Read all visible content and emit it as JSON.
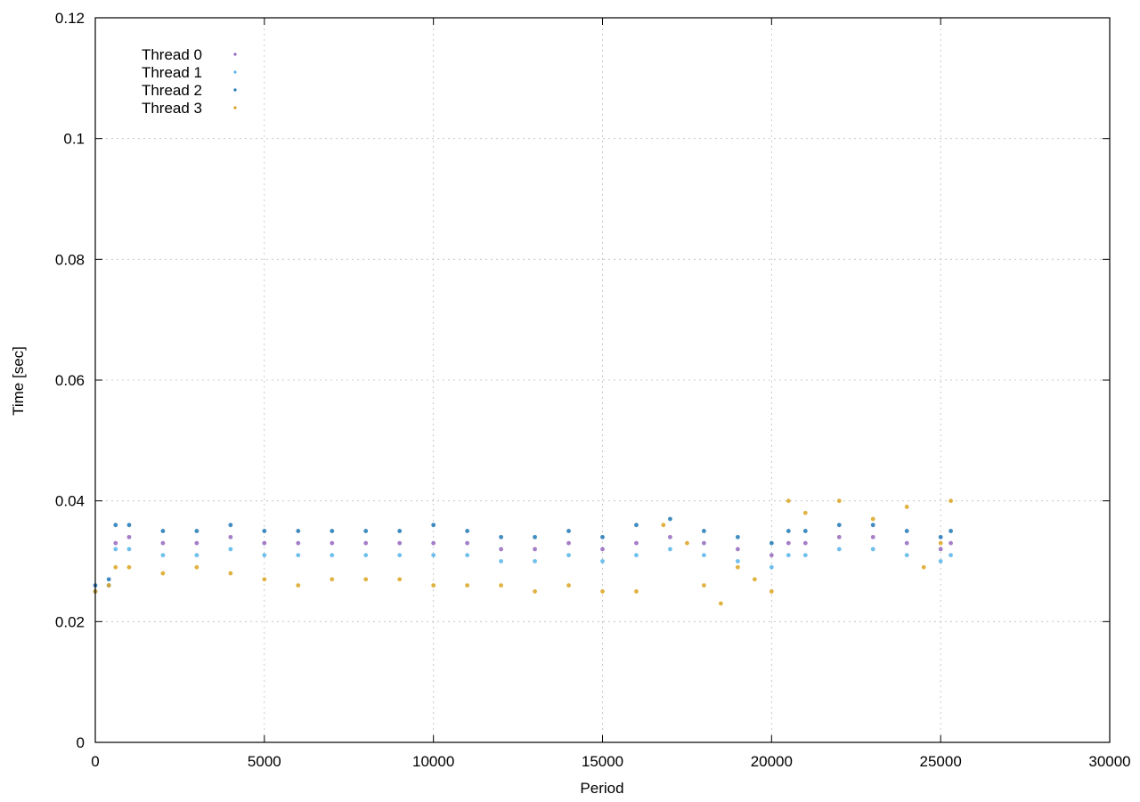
{
  "chart_data": {
    "type": "scatter",
    "title": "",
    "xlabel": "Period",
    "ylabel": "Time [sec]",
    "xlim": [
      0,
      30000
    ],
    "ylim": [
      0,
      0.12
    ],
    "x_ticks": [
      0,
      5000,
      10000,
      15000,
      20000,
      25000,
      30000
    ],
    "y_ticks": [
      0,
      0.02,
      0.04,
      0.06,
      0.08,
      0.1,
      0.12
    ],
    "x_tick_labels": [
      "0",
      "5000",
      "10000",
      "15000",
      "20000",
      "25000",
      "30000"
    ],
    "y_tick_labels": [
      "0",
      "0.02",
      "0.04",
      "0.06",
      "0.08",
      "0.1",
      "0.12"
    ],
    "grid": true,
    "legend_position": "top-left",
    "marker": "dot",
    "series": [
      {
        "name": "Thread 0",
        "color": "#9467bd",
        "x": [
          0,
          400,
          600,
          1000,
          2000,
          3000,
          4000,
          5000,
          6000,
          7000,
          8000,
          9000,
          10000,
          11000,
          12000,
          13000,
          14000,
          15000,
          16000,
          17000,
          18000,
          19000,
          20000,
          20500,
          21000,
          22000,
          23000,
          24000,
          25000,
          25300
        ],
        "y": [
          0.025,
          0.026,
          0.033,
          0.034,
          0.033,
          0.033,
          0.034,
          0.033,
          0.033,
          0.033,
          0.033,
          0.033,
          0.033,
          0.033,
          0.032,
          0.032,
          0.033,
          0.032,
          0.033,
          0.034,
          0.033,
          0.032,
          0.031,
          0.033,
          0.033,
          0.034,
          0.034,
          0.033,
          0.032,
          0.033
        ]
      },
      {
        "name": "Thread 1",
        "color": "#56b4e9",
        "x": [
          0,
          400,
          600,
          1000,
          2000,
          3000,
          4000,
          5000,
          6000,
          7000,
          8000,
          9000,
          10000,
          11000,
          12000,
          13000,
          14000,
          15000,
          16000,
          17000,
          18000,
          19000,
          20000,
          20500,
          21000,
          22000,
          23000,
          24000,
          25000,
          25300
        ],
        "y": [
          0.025,
          0.026,
          0.032,
          0.032,
          0.031,
          0.031,
          0.032,
          0.031,
          0.031,
          0.031,
          0.031,
          0.031,
          0.031,
          0.031,
          0.03,
          0.03,
          0.031,
          0.03,
          0.031,
          0.032,
          0.031,
          0.03,
          0.029,
          0.031,
          0.031,
          0.032,
          0.032,
          0.031,
          0.03,
          0.031
        ]
      },
      {
        "name": "Thread 2",
        "color": "#1f77b4",
        "x": [
          0,
          400,
          600,
          1000,
          2000,
          3000,
          4000,
          5000,
          6000,
          7000,
          8000,
          9000,
          10000,
          11000,
          12000,
          13000,
          14000,
          15000,
          16000,
          17000,
          18000,
          19000,
          20000,
          20500,
          21000,
          22000,
          23000,
          24000,
          25000,
          25300
        ],
        "y": [
          0.026,
          0.027,
          0.036,
          0.036,
          0.035,
          0.035,
          0.036,
          0.035,
          0.035,
          0.035,
          0.035,
          0.035,
          0.036,
          0.035,
          0.034,
          0.034,
          0.035,
          0.034,
          0.036,
          0.037,
          0.035,
          0.034,
          0.033,
          0.035,
          0.035,
          0.036,
          0.036,
          0.035,
          0.034,
          0.035
        ]
      },
      {
        "name": "Thread 3",
        "color": "#daa520",
        "x": [
          0,
          400,
          600,
          1000,
          2000,
          3000,
          4000,
          5000,
          6000,
          7000,
          8000,
          9000,
          10000,
          11000,
          12000,
          13000,
          14000,
          15000,
          16000,
          16800,
          17500,
          18000,
          18500,
          19000,
          19500,
          20000,
          20500,
          21000,
          22000,
          23000,
          24000,
          24500,
          25000,
          25300
        ],
        "y": [
          0.025,
          0.026,
          0.029,
          0.029,
          0.028,
          0.029,
          0.028,
          0.027,
          0.026,
          0.027,
          0.027,
          0.027,
          0.026,
          0.026,
          0.026,
          0.025,
          0.026,
          0.025,
          0.025,
          0.036,
          0.033,
          0.026,
          0.023,
          0.029,
          0.027,
          0.025,
          0.04,
          0.038,
          0.04,
          0.037,
          0.039,
          0.029,
          0.033,
          0.04
        ]
      }
    ]
  }
}
